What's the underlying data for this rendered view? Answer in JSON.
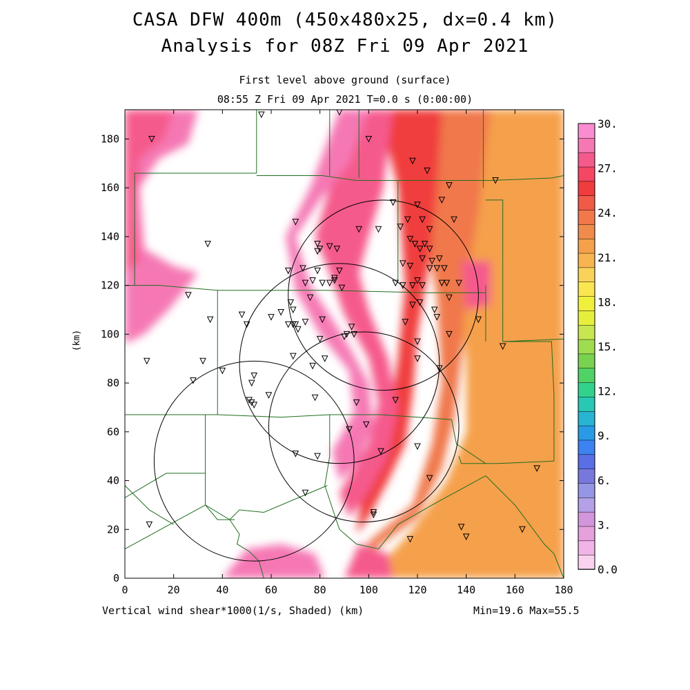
{
  "header": {
    "title_line1": "CASA DFW 400m (450x480x25, dx=0.4 km)",
    "title_line2": "Analysis for 08Z Fri 09 Apr 2021",
    "subtitle_line1": "First level above ground (surface)",
    "subtitle_line2": "08:55 Z Fri 09 Apr 2021   T=0.0 s (0:00:00)"
  },
  "footer": {
    "field_label": "Vertical wind shear*1000(1/s, Shaded)  (km)",
    "minmax": "Min=19.6 Max=55.5"
  },
  "axes": {
    "x_ticks": [
      "0",
      "20",
      "40",
      "60",
      "80",
      "100",
      "120",
      "140",
      "160",
      "180"
    ],
    "y_ticks": [
      "0",
      "20",
      "40",
      "60",
      "80",
      "100",
      "120",
      "140",
      "160",
      "180"
    ],
    "y_unit": "(km)"
  },
  "colorbar": {
    "labels": [
      "0.0",
      "3.",
      "6.",
      "9.",
      "12.",
      "15.",
      "18.",
      "21.",
      "24.",
      "27.",
      "30."
    ],
    "colors": [
      "#fad2f0",
      "#f0b4e6",
      "#e6a0dc",
      "#d296dc",
      "#b4a0e6",
      "#9696e6",
      "#7878dc",
      "#5a6ee6",
      "#3c82f0",
      "#289ae6",
      "#28b4d2",
      "#28c8b4",
      "#32d28c",
      "#50d264",
      "#78d250",
      "#a0dc50",
      "#c8e650",
      "#e6f03c",
      "#f0f03c",
      "#fae650",
      "#fad25a",
      "#f8b450",
      "#f5a04b",
      "#f08c4b",
      "#f0784b",
      "#f05a46",
      "#f03c3c",
      "#f54664",
      "#f55a8c",
      "#f578b4",
      "#fa8cd2"
    ]
  },
  "map": {
    "x_range_km": [
      0,
      180
    ],
    "y_range_km": [
      0,
      192
    ],
    "range_rings": [
      {
        "center_km": [
          106,
          116
        ],
        "radius_km": 39
      },
      {
        "center_km": [
          88,
          88
        ],
        "radius_km": 41
      },
      {
        "center_km": [
          98,
          62
        ],
        "radius_km": 39
      },
      {
        "center_km": [
          53,
          48
        ],
        "radius_km": 41
      }
    ],
    "stations_km": [
      [
        11,
        180
      ],
      [
        56,
        190
      ],
      [
        88,
        191
      ],
      [
        100,
        180
      ],
      [
        118,
        171
      ],
      [
        124,
        167
      ],
      [
        133,
        161
      ],
      [
        152,
        163
      ],
      [
        70,
        146
      ],
      [
        122,
        147
      ],
      [
        110,
        154
      ],
      [
        116,
        147
      ],
      [
        125,
        143
      ],
      [
        113,
        144
      ],
      [
        135,
        147
      ],
      [
        130,
        155
      ],
      [
        120,
        153
      ],
      [
        96,
        143
      ],
      [
        104,
        143
      ],
      [
        34,
        137
      ],
      [
        79,
        137
      ],
      [
        80,
        135
      ],
      [
        84,
        136
      ],
      [
        87,
        135
      ],
      [
        79,
        134
      ],
      [
        117,
        139
      ],
      [
        119,
        137
      ],
      [
        123,
        137
      ],
      [
        125,
        135
      ],
      [
        122,
        131
      ],
      [
        121,
        135
      ],
      [
        126,
        130
      ],
      [
        129,
        131
      ],
      [
        114,
        129
      ],
      [
        117,
        128
      ],
      [
        125,
        127
      ],
      [
        128,
        127
      ],
      [
        131,
        127
      ],
      [
        73,
        127
      ],
      [
        67,
        126
      ],
      [
        79,
        126
      ],
      [
        88,
        126
      ],
      [
        86,
        123
      ],
      [
        77,
        122
      ],
      [
        81,
        121
      ],
      [
        84,
        121
      ],
      [
        89,
        119
      ],
      [
        111,
        121
      ],
      [
        114,
        120
      ],
      [
        118,
        120
      ],
      [
        120,
        122
      ],
      [
        122,
        120
      ],
      [
        130,
        121
      ],
      [
        132,
        121
      ],
      [
        137,
        121
      ],
      [
        86,
        122
      ],
      [
        74,
        121
      ],
      [
        118,
        112
      ],
      [
        121,
        113
      ],
      [
        127,
        110
      ],
      [
        133,
        115
      ],
      [
        68,
        113
      ],
      [
        76,
        115
      ],
      [
        69,
        110
      ],
      [
        64,
        109
      ],
      [
        48,
        108
      ],
      [
        60,
        107
      ],
      [
        67,
        104
      ],
      [
        69,
        104
      ],
      [
        71,
        102
      ],
      [
        70,
        104
      ],
      [
        74,
        105
      ],
      [
        81,
        106
      ],
      [
        35,
        106
      ],
      [
        26,
        116
      ],
      [
        50,
        104
      ],
      [
        115,
        105
      ],
      [
        145,
        106
      ],
      [
        128,
        107
      ],
      [
        93,
        103
      ],
      [
        94,
        100
      ],
      [
        80,
        98
      ],
      [
        90,
        99
      ],
      [
        91,
        100
      ],
      [
        120,
        97
      ],
      [
        155,
        95
      ],
      [
        133,
        100
      ],
      [
        9,
        89
      ],
      [
        32,
        89
      ],
      [
        69,
        91
      ],
      [
        77,
        87
      ],
      [
        82,
        90
      ],
      [
        120,
        90
      ],
      [
        129,
        86
      ],
      [
        28,
        81
      ],
      [
        40,
        85
      ],
      [
        53,
        83
      ],
      [
        52,
        80
      ],
      [
        59,
        75
      ],
      [
        78,
        74
      ],
      [
        95,
        72
      ],
      [
        111,
        73
      ],
      [
        51,
        73
      ],
      [
        52,
        72
      ],
      [
        53,
        71
      ],
      [
        99,
        63
      ],
      [
        92,
        61
      ],
      [
        70,
        51
      ],
      [
        79,
        50
      ],
      [
        105,
        52
      ],
      [
        120,
        54
      ],
      [
        169,
        45
      ],
      [
        125,
        41
      ],
      [
        74,
        35
      ],
      [
        102,
        26
      ],
      [
        102,
        27
      ],
      [
        10,
        22
      ],
      [
        138,
        21
      ],
      [
        140,
        17
      ],
      [
        163,
        20
      ],
      [
        117,
        16
      ]
    ],
    "county_lines": [
      [
        [
          0,
          120
        ],
        [
          14,
          120
        ],
        [
          38,
          118
        ],
        [
          82,
          118
        ],
        [
          124,
          117
        ],
        [
          148,
          117
        ]
      ],
      [
        [
          38,
          118
        ],
        [
          38,
          67
        ],
        [
          0,
          67
        ]
      ],
      [
        [
          38,
          67
        ],
        [
          64,
          66
        ],
        [
          84,
          67
        ],
        [
          105,
          67
        ],
        [
          120,
          66
        ],
        [
          134,
          65
        ]
      ],
      [
        [
          4,
          166
        ],
        [
          4,
          120
        ]
      ],
      [
        [
          4,
          166
        ],
        [
          54,
          166
        ]
      ],
      [
        [
          54,
          192
        ],
        [
          54,
          166
        ]
      ],
      [
        [
          54,
          165
        ],
        [
          81,
          165
        ],
        [
          95,
          163
        ],
        [
          112,
          163
        ]
      ],
      [
        [
          112,
          163
        ],
        [
          112,
          125
        ],
        [
          112,
          121
        ]
      ],
      [
        [
          84,
          192
        ],
        [
          84,
          165
        ]
      ],
      [
        [
          96,
          192
        ],
        [
          96,
          164
        ]
      ],
      [
        [
          112,
          163
        ],
        [
          135,
          163
        ],
        [
          150,
          163
        ]
      ],
      [
        [
          147,
          192
        ],
        [
          147,
          160
        ]
      ],
      [
        [
          150,
          163
        ],
        [
          175,
          164
        ],
        [
          180,
          165
        ]
      ],
      [
        [
          148,
          155
        ],
        [
          155,
          155
        ],
        [
          155,
          117
        ]
      ],
      [
        [
          155,
          117
        ],
        [
          155,
          97
        ]
      ],
      [
        [
          155,
          97
        ],
        [
          180,
          98
        ]
      ],
      [
        [
          148,
          97
        ],
        [
          148,
          120
        ]
      ],
      [
        [
          155,
          97
        ],
        [
          158,
          97
        ],
        [
          175,
          97
        ],
        [
          176,
          75
        ],
        [
          176,
          48
        ]
      ],
      [
        [
          176,
          48
        ],
        [
          153,
          47
        ],
        [
          138,
          47
        ],
        [
          137,
          50
        ]
      ],
      [
        [
          134,
          65
        ],
        [
          136,
          55
        ],
        [
          148,
          47
        ]
      ],
      [
        [
          84,
          67
        ],
        [
          84,
          50
        ],
        [
          82,
          38
        ],
        [
          88,
          20
        ],
        [
          95,
          14
        ],
        [
          104,
          12
        ]
      ],
      [
        [
          104,
          12
        ],
        [
          112,
          22
        ],
        [
          126,
          30
        ],
        [
          148,
          42
        ],
        [
          160,
          30
        ],
        [
          172,
          14
        ],
        [
          176,
          10
        ],
        [
          180,
          0
        ]
      ],
      [
        [
          33,
          67
        ],
        [
          33,
          43
        ],
        [
          33,
          30
        ],
        [
          0,
          12
        ]
      ],
      [
        [
          33,
          43
        ],
        [
          17,
          43
        ],
        [
          0,
          33
        ]
      ],
      [
        [
          0,
          38
        ],
        [
          10,
          28
        ],
        [
          20,
          22
        ]
      ],
      [
        [
          33,
          30
        ],
        [
          43,
          24
        ],
        [
          47,
          28
        ],
        [
          57,
          27
        ],
        [
          83,
          38
        ]
      ],
      [
        [
          43,
          24
        ],
        [
          47,
          18
        ],
        [
          46,
          14
        ],
        [
          51,
          11
        ],
        [
          55,
          7
        ],
        [
          57,
          0
        ]
      ],
      [
        [
          33,
          30
        ],
        [
          38,
          24
        ],
        [
          45,
          24
        ]
      ]
    ]
  }
}
